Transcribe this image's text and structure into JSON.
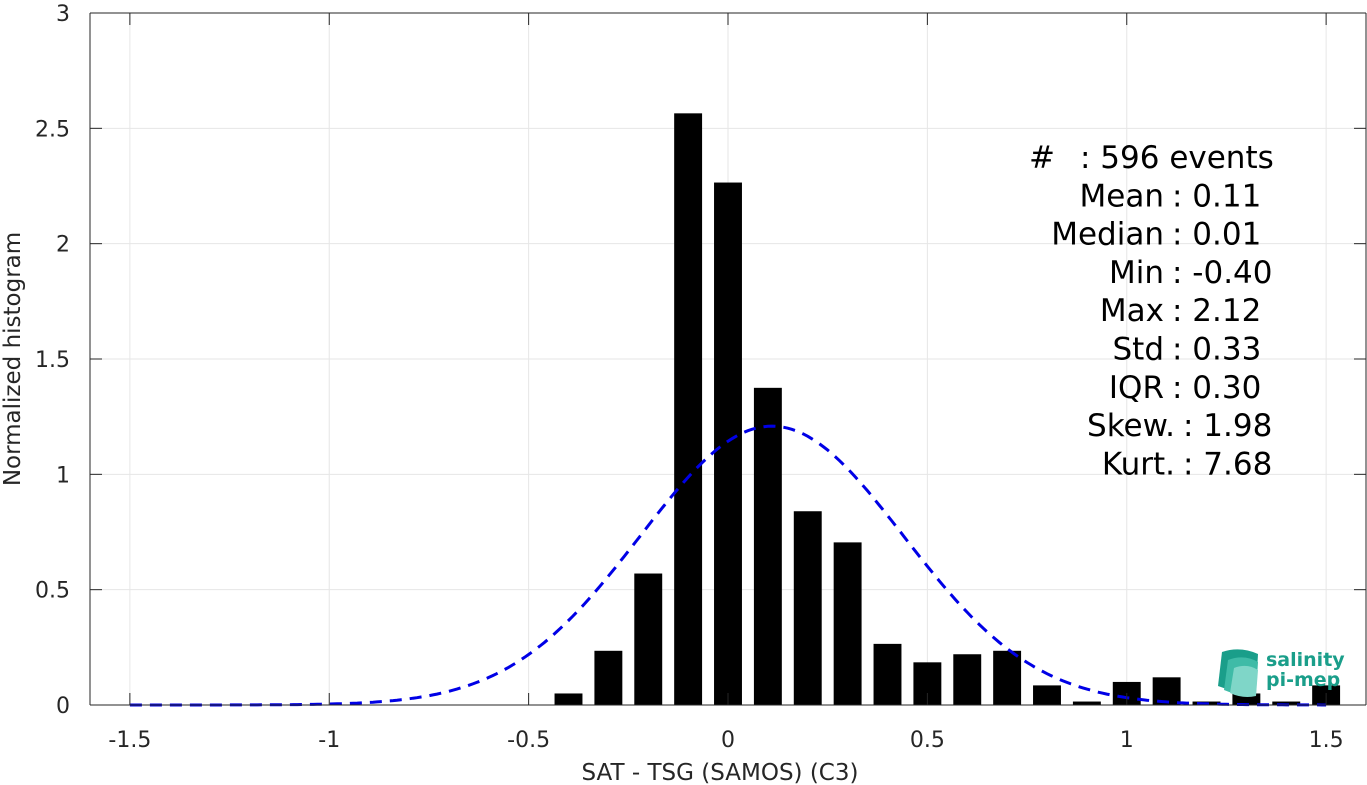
{
  "chart_data": {
    "type": "bar",
    "xlabel": "SAT - TSG (SAMOS) (C3)",
    "ylabel": "Normalized histogram",
    "xlim": [
      -1.6,
      1.6
    ],
    "ylim": [
      0,
      3
    ],
    "grid": true,
    "x_ticks": [
      "-1.5",
      "-1",
      "-0.5",
      "0",
      "0.5",
      "1",
      "1.5"
    ],
    "y_ticks": [
      "0",
      "0.5",
      "1",
      "1.5",
      "2",
      "2.5",
      "3"
    ],
    "bin_width": 0.1,
    "bins": [
      {
        "x": -0.4,
        "y": 0.05
      },
      {
        "x": -0.3,
        "y": 0.235
      },
      {
        "x": -0.2,
        "y": 0.57
      },
      {
        "x": -0.1,
        "y": 2.565
      },
      {
        "x": 0.0,
        "y": 2.265
      },
      {
        "x": 0.1,
        "y": 1.375
      },
      {
        "x": 0.2,
        "y": 0.84
      },
      {
        "x": 0.3,
        "y": 0.705
      },
      {
        "x": 0.4,
        "y": 0.265
      },
      {
        "x": 0.5,
        "y": 0.185
      },
      {
        "x": 0.6,
        "y": 0.22
      },
      {
        "x": 0.7,
        "y": 0.235
      },
      {
        "x": 0.8,
        "y": 0.085
      },
      {
        "x": 0.9,
        "y": 0.015
      },
      {
        "x": 1.0,
        "y": 0.1
      },
      {
        "x": 1.1,
        "y": 0.12
      },
      {
        "x": 1.2,
        "y": 0.015
      },
      {
        "x": 1.3,
        "y": 0.05
      },
      {
        "x": 1.4,
        "y": 0.015
      },
      {
        "x": 1.5,
        "y": 0.085
      }
    ],
    "series": [
      {
        "type": "gaussian-fit",
        "mean": 0.11,
        "std": 0.33,
        "color": "#0000e6",
        "style": "dashed",
        "x_range": [
          -1.5,
          1.5
        ]
      }
    ],
    "bar_color": "#000000",
    "stats": [
      {
        "key": "#",
        "value": ": 596 events"
      },
      {
        "key": "Mean",
        "value": ": 0.11"
      },
      {
        "key": "Median",
        "value": ": 0.01"
      },
      {
        "key": "Min",
        "value": ": -0.40"
      },
      {
        "key": "Max",
        "value": ": 2.12"
      },
      {
        "key": "Std",
        "value": ": 0.33"
      },
      {
        "key": "IQR",
        "value": ": 0.30"
      },
      {
        "key": "Skew.",
        "value": ": 1.98"
      },
      {
        "key": "Kurt.",
        "value": ": 7.68"
      }
    ]
  },
  "logo": {
    "line1": "salinity",
    "line2": "pi-mep",
    "color": "#1a9e8a"
  }
}
